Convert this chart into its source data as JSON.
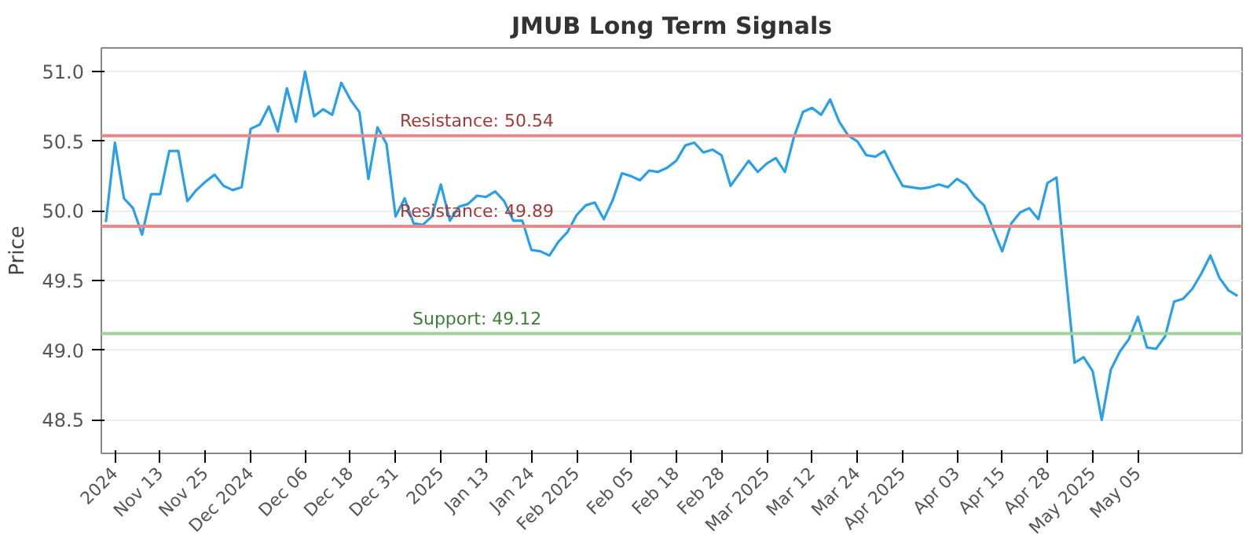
{
  "chart_data": {
    "type": "line",
    "title": "JMUB Long Term Signals",
    "ylabel": "Price",
    "categories": [
      null,
      "2024",
      null,
      null,
      null,
      null,
      "Nov 13",
      null,
      null,
      null,
      null,
      "Nov 25",
      null,
      null,
      null,
      null,
      "Dec 2024",
      null,
      null,
      null,
      null,
      null,
      "Dec 06",
      null,
      null,
      null,
      null,
      "Dec 18",
      null,
      null,
      null,
      null,
      "Dec 31",
      null,
      null,
      null,
      null,
      "2025",
      null,
      null,
      null,
      null,
      "Jan 13",
      null,
      null,
      null,
      null,
      "Jan 24",
      null,
      null,
      null,
      null,
      "Feb 2025",
      null,
      null,
      null,
      null,
      null,
      "Feb 05",
      null,
      null,
      null,
      null,
      "Feb 18",
      null,
      null,
      null,
      null,
      "Feb 28",
      null,
      null,
      null,
      null,
      "Mar 2025",
      null,
      null,
      null,
      null,
      "Mar 12",
      null,
      null,
      null,
      null,
      "Mar 24",
      null,
      null,
      null,
      null,
      "Apr 2025",
      null,
      null,
      null,
      null,
      null,
      "Apr 03",
      null,
      null,
      null,
      null,
      "Apr 15",
      null,
      null,
      null,
      null,
      "Apr 28",
      null,
      null,
      null,
      null,
      "May 2025",
      null,
      null,
      null,
      null,
      "May 05",
      null,
      null,
      null,
      null,
      null,
      null,
      null,
      null,
      null,
      null,
      null
    ],
    "series": [
      {
        "color": "#2aa0e8",
        "values": [
          49.92,
          50.49,
          50.09,
          50.02,
          49.83,
          50.12,
          50.12,
          50.43,
          50.43,
          50.07,
          50.15,
          50.21,
          50.26,
          50.18,
          50.15,
          50.17,
          50.59,
          50.62,
          50.75,
          50.57,
          50.88,
          50.64,
          51.0,
          50.68,
          50.73,
          50.69,
          50.92,
          50.8,
          50.71,
          50.23,
          50.6,
          50.48,
          49.96,
          50.09,
          49.91,
          49.9,
          49.96,
          50.19,
          49.93,
          50.03,
          50.05,
          50.11,
          50.1,
          50.14,
          50.07,
          49.93,
          49.93,
          49.72,
          49.71,
          49.68,
          49.78,
          49.85,
          49.97,
          50.04,
          50.06,
          49.94,
          50.08,
          50.27,
          50.25,
          50.22,
          50.29,
          50.28,
          50.31,
          50.36,
          50.47,
          50.49,
          50.42,
          50.44,
          50.4,
          50.18,
          50.27,
          50.36,
          50.28,
          50.34,
          50.38,
          50.28,
          50.53,
          50.71,
          50.74,
          50.69,
          50.8,
          50.64,
          50.54,
          50.5,
          50.4,
          50.39,
          50.43,
          50.3,
          50.18,
          50.17,
          50.16,
          50.17,
          50.19,
          50.17,
          50.23,
          50.19,
          50.1,
          50.04,
          49.87,
          49.71,
          49.91,
          49.99,
          50.02,
          49.94,
          50.2,
          50.24,
          49.56,
          48.91,
          48.95,
          48.85,
          48.5,
          48.86,
          48.99,
          49.08,
          49.24,
          49.02,
          49.01,
          49.1,
          49.35,
          49.37,
          49.44,
          49.55,
          49.68,
          49.52,
          49.43,
          49.39
        ]
      }
    ],
    "ylim": [
      48.26,
      51.17
    ],
    "yticks": [
      48.5,
      {
        "value": 49,
        "label": "49.0"
      },
      49.5,
      {
        "value": 50,
        "label": "50.0"
      },
      50.5,
      {
        "value": 51,
        "label": "51.0"
      }
    ],
    "ref_lines": [
      {
        "axis": "y",
        "value": 50.54,
        "label": "Resistance: 50.54",
        "color": "#e88a8a"
      },
      {
        "axis": "y",
        "value": 49.89,
        "label": "Resistance: 49.89",
        "color": "#e88a8a"
      },
      {
        "axis": "y",
        "value": 49.12,
        "label": "Support: 49.12",
        "color": "#9fd39a"
      }
    ],
    "grid": "y",
    "marker": "none",
    "line_style": "solid"
  }
}
